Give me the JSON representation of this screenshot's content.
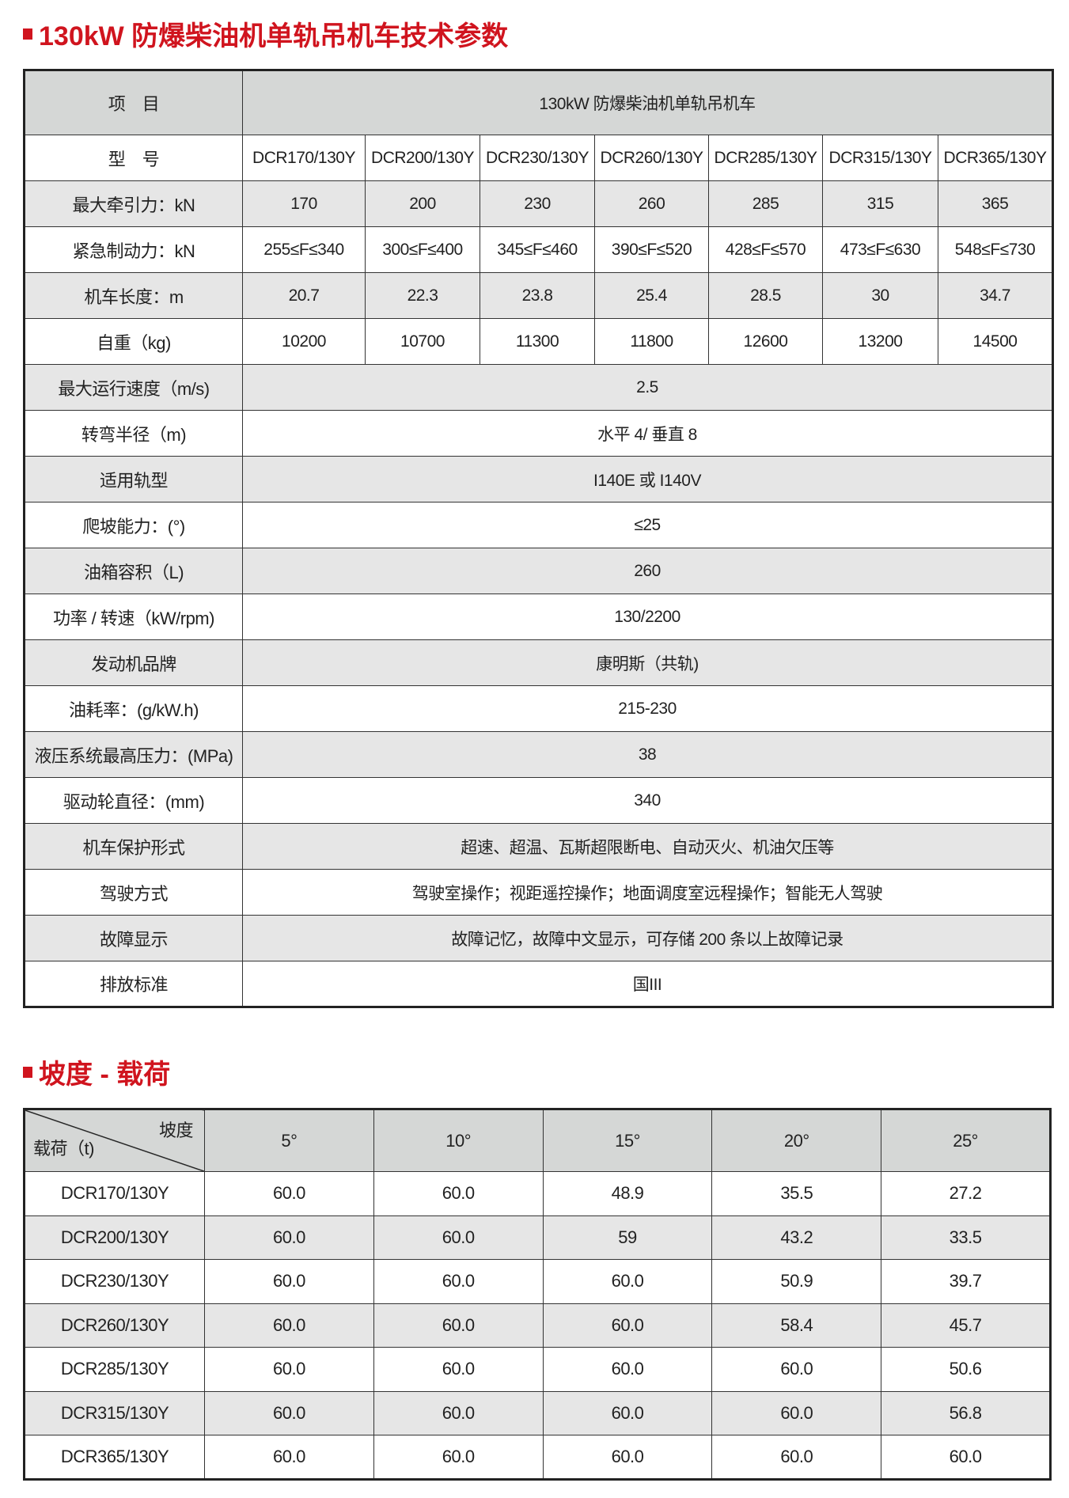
{
  "title1": "130kW 防爆柴油机单轨吊机车技术参数",
  "title2": "坡度 - 载荷",
  "spec": {
    "header_item": "项　目",
    "header_product": "130kW 防爆柴油机单轨吊机车",
    "model_label": "型　号",
    "models": [
      "DCR170/130Y",
      "DCR200/130Y",
      "DCR230/130Y",
      "DCR260/130Y",
      "DCR285/130Y",
      "DCR315/130Y",
      "DCR365/130Y"
    ],
    "per_model": [
      {
        "label": "最大牵引力：kN",
        "values": [
          "170",
          "200",
          "230",
          "260",
          "285",
          "315",
          "365"
        ]
      },
      {
        "label": "紧急制动力：kN",
        "values": [
          "255≤F≤340",
          "300≤F≤400",
          "345≤F≤460",
          "390≤F≤520",
          "428≤F≤570",
          "473≤F≤630",
          "548≤F≤730"
        ]
      },
      {
        "label": "机车长度：m",
        "values": [
          "20.7",
          "22.3",
          "23.8",
          "25.4",
          "28.5",
          "30",
          "34.7"
        ]
      },
      {
        "label": "自重（kg)",
        "values": [
          "10200",
          "10700",
          "11300",
          "11800",
          "12600",
          "13200",
          "14500"
        ]
      }
    ],
    "shared": [
      {
        "label": "最大运行速度（m/s)",
        "value": "2.5"
      },
      {
        "label": "转弯半径（m)",
        "value": "水平 4/ 垂直 8"
      },
      {
        "label": "适用轨型",
        "value": "I140E 或 I140V"
      },
      {
        "label": "爬坡能力：(°)",
        "value": "≤25"
      },
      {
        "label": "油箱容积（L)",
        "value": "260"
      },
      {
        "label": "功率 / 转速（kW/rpm)",
        "value": "130/2200"
      },
      {
        "label": "发动机品牌",
        "value": "康明斯（共轨)"
      },
      {
        "label": "油耗率：(g/kW.h)",
        "value": "215-230"
      },
      {
        "label": "液压系统最高压力：(MPa)",
        "value": "38"
      },
      {
        "label": "驱动轮直径：(mm)",
        "value": "340"
      },
      {
        "label": "机车保护形式",
        "value": "超速、超温、瓦斯超限断电、自动灭火、机油欠压等"
      },
      {
        "label": "驾驶方式",
        "value": "驾驶室操作；视距遥控操作；地面调度室远程操作；智能无人驾驶"
      },
      {
        "label": "故障显示",
        "value": "故障记忆，故障中文显示，可存储 200 条以上故障记录"
      },
      {
        "label": "排放标准",
        "value": "国III"
      }
    ]
  },
  "slope": {
    "corner_top": "坡度",
    "corner_bottom": "载荷（t)",
    "angles": [
      "5°",
      "10°",
      "15°",
      "20°",
      "25°"
    ],
    "rows": [
      {
        "model": "DCR170/130Y",
        "values": [
          "60.0",
          "60.0",
          "48.9",
          "35.5",
          "27.2"
        ]
      },
      {
        "model": "DCR200/130Y",
        "values": [
          "60.0",
          "60.0",
          "59",
          "43.2",
          "33.5"
        ]
      },
      {
        "model": "DCR230/130Y",
        "values": [
          "60.0",
          "60.0",
          "60.0",
          "50.9",
          "39.7"
        ]
      },
      {
        "model": "DCR260/130Y",
        "values": [
          "60.0",
          "60.0",
          "60.0",
          "58.4",
          "45.7"
        ]
      },
      {
        "model": "DCR285/130Y",
        "values": [
          "60.0",
          "60.0",
          "60.0",
          "60.0",
          "50.6"
        ]
      },
      {
        "model": "DCR315/130Y",
        "values": [
          "60.0",
          "60.0",
          "60.0",
          "60.0",
          "56.8"
        ]
      },
      {
        "model": "DCR365/130Y",
        "values": [
          "60.0",
          "60.0",
          "60.0",
          "60.0",
          "60.0"
        ]
      }
    ]
  }
}
